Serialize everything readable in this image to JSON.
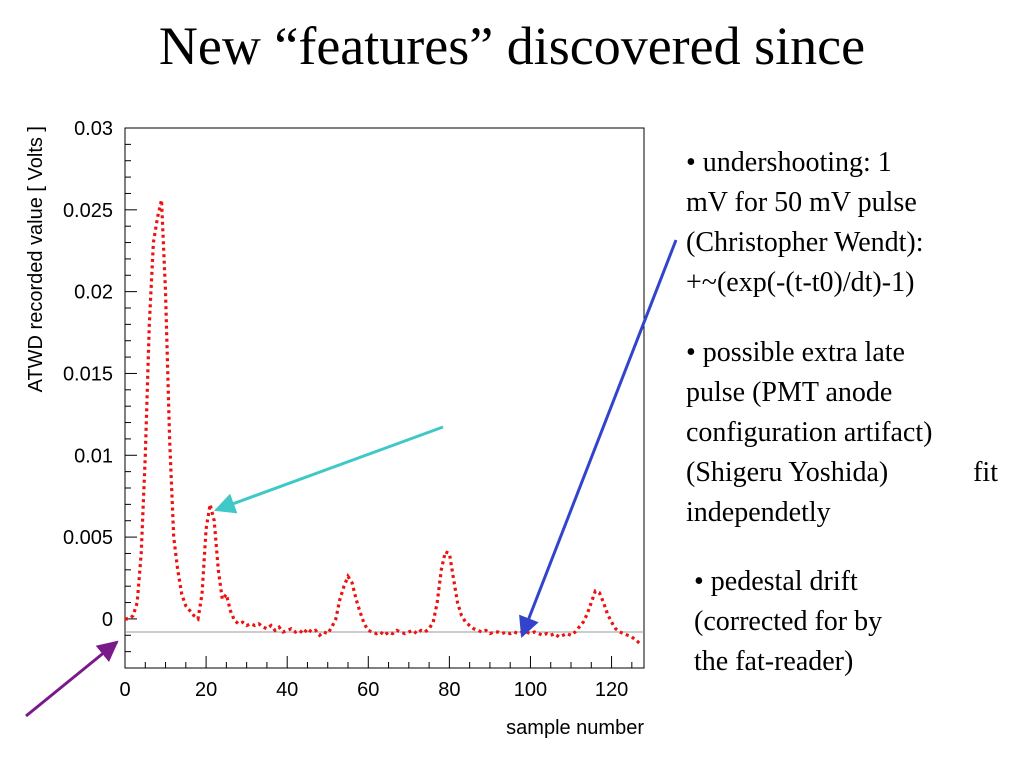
{
  "slide": {
    "title": "New “features” discovered since"
  },
  "chart_data": {
    "type": "line",
    "xlabel": "sample number",
    "ylabel": "ATWD recorded value [ Volts ]",
    "xlim": [
      0,
      128
    ],
    "ylim": [
      -0.003,
      0.03
    ],
    "x_ticks": [
      "0",
      "20",
      "40",
      "60",
      "80",
      "100",
      "120"
    ],
    "y_ticks": [
      "0",
      "0.005",
      "0.01",
      "0.015",
      "0.02",
      "0.025",
      "0.03"
    ],
    "line_style": "dotted",
    "series": [
      {
        "color": "#ee1111",
        "x": [
          0,
          1,
          2,
          3,
          4,
          5,
          6,
          7,
          8,
          9,
          10,
          11,
          12,
          13,
          14,
          15,
          16,
          17,
          18,
          19,
          20,
          21,
          22,
          23,
          24,
          25,
          26,
          27,
          28,
          29,
          30,
          31,
          32,
          33,
          34,
          35,
          36,
          37,
          38,
          39,
          40,
          41,
          42,
          43,
          44,
          45,
          46,
          47,
          48,
          49,
          50,
          51,
          52,
          53,
          54,
          55,
          56,
          57,
          58,
          59,
          60,
          61,
          62,
          63,
          64,
          65,
          66,
          67,
          68,
          69,
          70,
          71,
          72,
          73,
          74,
          75,
          76,
          77,
          78,
          79,
          80,
          81,
          82,
          83,
          84,
          85,
          86,
          87,
          88,
          89,
          90,
          91,
          92,
          93,
          94,
          95,
          96,
          97,
          98,
          99,
          100,
          101,
          102,
          103,
          104,
          105,
          106,
          107,
          108,
          109,
          110,
          111,
          112,
          113,
          114,
          115,
          116,
          117,
          118,
          119,
          120,
          121,
          122,
          123,
          124,
          125,
          126,
          127
        ],
        "y": [
          0.0,
          0.0,
          0.0002,
          0.001,
          0.004,
          0.01,
          0.018,
          0.023,
          0.0245,
          0.0256,
          0.02,
          0.011,
          0.005,
          0.003,
          0.0015,
          0.0008,
          0.0005,
          0.0002,
          0.0,
          0.0015,
          0.0055,
          0.007,
          0.006,
          0.003,
          0.0012,
          0.0015,
          0.0005,
          -0.0001,
          -0.0003,
          -0.0002,
          -0.0004,
          -0.0003,
          -0.0004,
          -0.0003,
          -0.0005,
          -0.0006,
          -0.0004,
          -0.0007,
          -0.0005,
          -0.0008,
          -0.0007,
          -0.0006,
          -0.0008,
          -0.0007,
          -0.0009,
          -0.0006,
          -0.0008,
          -0.0007,
          -0.001,
          -0.0008,
          -0.0009,
          -0.0005,
          0.0,
          0.0012,
          0.002,
          0.0026,
          0.0022,
          0.0012,
          0.0004,
          -0.0003,
          -0.0007,
          -0.0008,
          -0.0009,
          -0.0008,
          -0.001,
          -0.0008,
          -0.0009,
          -0.0007,
          -0.0008,
          -0.0009,
          -0.0008,
          -0.0007,
          -0.0009,
          -0.0007,
          -0.0008,
          -0.0006,
          -0.0002,
          0.001,
          0.003,
          0.0041,
          0.004,
          0.0025,
          0.001,
          0.0002,
          -0.0002,
          -0.0004,
          -0.0006,
          -0.0007,
          -0.0008,
          -0.0007,
          -0.0009,
          -0.0008,
          -0.0008,
          -0.0009,
          -0.0008,
          -0.0009,
          -0.0008,
          -0.0009,
          -0.0008,
          -0.0008,
          -0.0009,
          -0.0008,
          -0.0009,
          -0.001,
          -0.0009,
          -0.001,
          -0.0009,
          -0.0011,
          -0.001,
          -0.0009,
          -0.001,
          -0.0008,
          -0.0005,
          -0.0002,
          0.0003,
          0.001,
          0.0017,
          0.0016,
          0.001,
          0.0003,
          -0.0002,
          -0.0006,
          -0.0008,
          -0.0009,
          -0.001,
          -0.0011,
          -0.0013,
          -0.0015
        ]
      }
    ]
  },
  "bullets": {
    "b1": {
      "line1": "• undershooting: 1",
      "line2": "mV for 50 mV pulse",
      "line3": "(Christopher Wendt):",
      "line4": "+~(exp(-(t-t0)/dt)-1)"
    },
    "b2": {
      "line1": "• possible extra late",
      "line2": "pulse (PMT anode",
      "line3": "configuration artifact)",
      "line4a": "(Shigeru Yoshida)",
      "line4b": "fit",
      "line5": "independetly"
    },
    "b3": {
      "line1": "• pedestal drift",
      "line2": "(corrected for by",
      "line3": "the fat-reader)"
    }
  },
  "arrows": {
    "cyan": "#40c8c8",
    "blue": "#3344cc",
    "purple": "#7a1a8a"
  }
}
